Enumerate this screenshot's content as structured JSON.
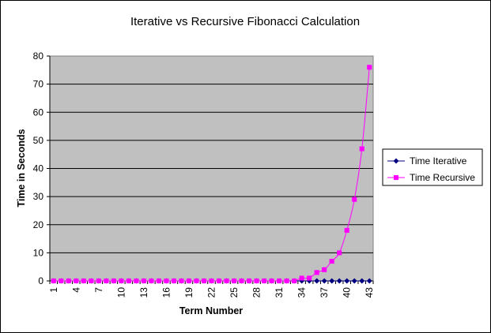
{
  "chart_data": {
    "type": "line",
    "title": "Iterative vs Recursive Fibonacci Calculation",
    "xlabel": "Term Number",
    "ylabel": "Time in Seconds",
    "ylim": [
      0,
      80
    ],
    "yticks": [
      0,
      10,
      20,
      30,
      40,
      50,
      60,
      70,
      80
    ],
    "x": [
      1,
      2,
      3,
      4,
      5,
      6,
      7,
      8,
      9,
      10,
      11,
      12,
      13,
      14,
      15,
      16,
      17,
      18,
      19,
      20,
      21,
      22,
      23,
      24,
      25,
      26,
      27,
      28,
      29,
      30,
      31,
      32,
      33,
      34,
      35,
      36,
      37,
      38,
      39,
      40,
      41,
      42,
      43
    ],
    "xtick_labels": [
      1,
      4,
      7,
      10,
      13,
      16,
      19,
      22,
      25,
      28,
      31,
      34,
      37,
      40,
      43
    ],
    "grid": true,
    "legend_position": "right",
    "plot_background": "#c0c0c0",
    "series": [
      {
        "name": "Time Iterative",
        "color": "#000080",
        "marker": "diamond",
        "values": [
          0,
          0,
          0,
          0,
          0,
          0,
          0,
          0,
          0,
          0,
          0,
          0,
          0,
          0,
          0,
          0,
          0,
          0,
          0,
          0,
          0,
          0,
          0,
          0,
          0,
          0,
          0,
          0,
          0,
          0,
          0,
          0,
          0,
          0,
          0,
          0,
          0,
          0,
          0,
          0,
          0,
          0,
          0
        ]
      },
      {
        "name": "Time Recursive",
        "color": "#ff00ff",
        "marker": "square",
        "values": [
          0,
          0,
          0,
          0,
          0,
          0,
          0,
          0,
          0,
          0,
          0,
          0,
          0,
          0,
          0,
          0,
          0,
          0,
          0,
          0,
          0,
          0,
          0,
          0,
          0,
          0,
          0,
          0,
          0,
          0,
          0,
          0,
          0,
          1,
          1,
          3,
          4,
          7,
          10,
          18,
          29,
          47,
          76
        ]
      }
    ]
  }
}
